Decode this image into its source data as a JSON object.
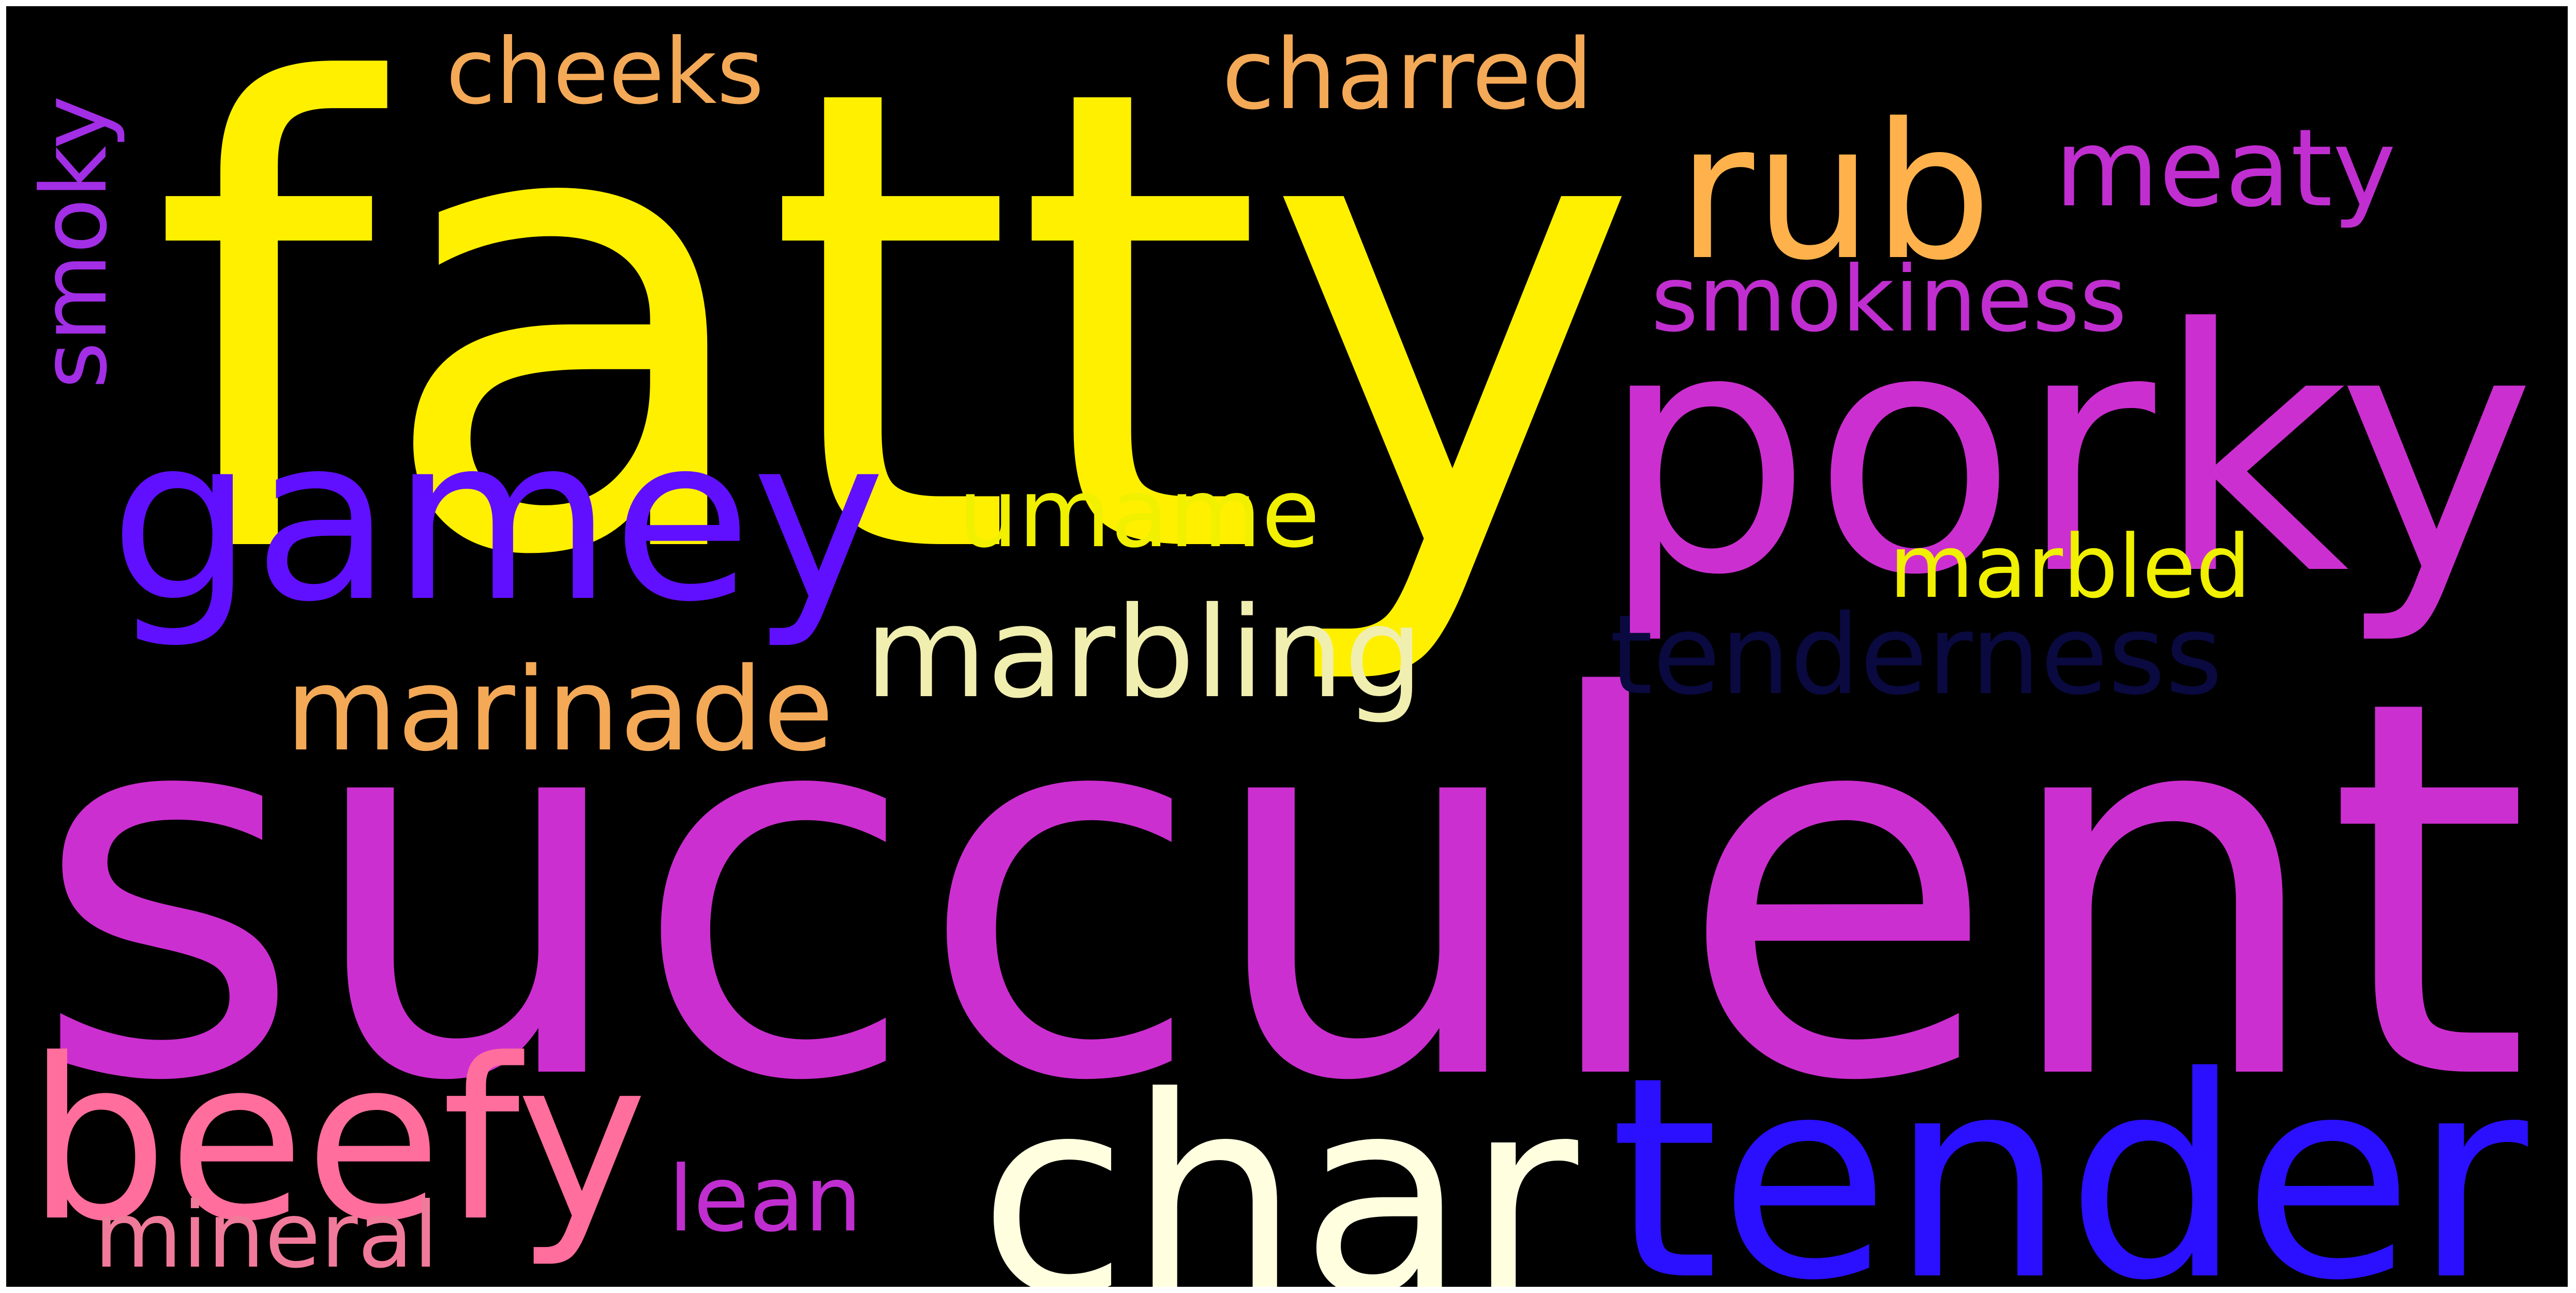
{
  "wordcloud": {
    "background": "#000000",
    "words": [
      {
        "text": "fatty",
        "color": "#FFF000"
      },
      {
        "text": "succulent",
        "color": "#CC2FD0"
      },
      {
        "text": "porky",
        "color": "#CC2FD0"
      },
      {
        "text": "gamey",
        "color": "#6010FF"
      },
      {
        "text": "char",
        "color": "#FFFFE0"
      },
      {
        "text": "tender",
        "color": "#2A10FF"
      },
      {
        "text": "beefy",
        "color": "#FF6E9C"
      },
      {
        "text": "rub",
        "color": "#FFB24C"
      },
      {
        "text": "meaty",
        "color": "#C02ED0"
      },
      {
        "text": "cheeks",
        "color": "#F4A957"
      },
      {
        "text": "charred",
        "color": "#F4A957"
      },
      {
        "text": "smokiness",
        "color": "#C02ED0"
      },
      {
        "text": "smoky",
        "color": "#A22EE6"
      },
      {
        "text": "umame",
        "color": "#F0F000"
      },
      {
        "text": "marbled",
        "color": "#F0F000"
      },
      {
        "text": "tenderness",
        "color": "#0A0A40"
      },
      {
        "text": "marbling",
        "color": "#F0EFB0"
      },
      {
        "text": "marinade",
        "color": "#F4A957"
      },
      {
        "text": "lean",
        "color": "#C02ED0"
      },
      {
        "text": "mineral",
        "color": "#F07A9A"
      }
    ]
  }
}
